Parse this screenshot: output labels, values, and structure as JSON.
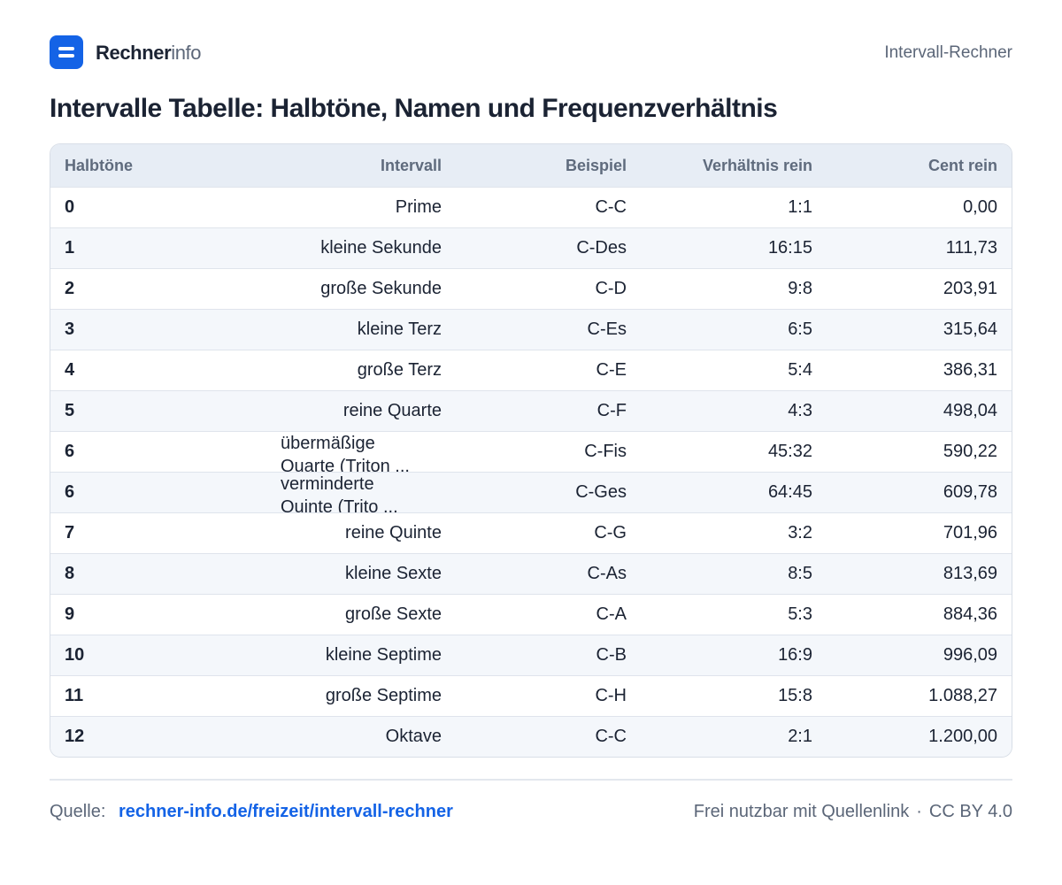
{
  "brand": {
    "bold": "Rechner",
    "light": "info"
  },
  "header": {
    "tool_name": "Intervall-Rechner"
  },
  "page": {
    "title": "Intervalle Tabelle: Halbtöne, Namen und Frequenzverhältnis"
  },
  "table": {
    "columns": [
      "Halbtöne",
      "Intervall",
      "Beispiel",
      "Verhältnis rein",
      "Cent rein"
    ],
    "rows": [
      [
        "0",
        "Prime",
        "C-C",
        "1:1",
        "0,00"
      ],
      [
        "1",
        "kleine Sekunde",
        "C-Des",
        "16:15",
        "111,73"
      ],
      [
        "2",
        "große Sekunde",
        "C-D",
        "9:8",
        "203,91"
      ],
      [
        "3",
        "kleine Terz",
        "C-Es",
        "6:5",
        "315,64"
      ],
      [
        "4",
        "große Terz",
        "C-E",
        "5:4",
        "386,31"
      ],
      [
        "5",
        "reine Quarte",
        "C-F",
        "4:3",
        "498,04"
      ],
      [
        "6",
        "übermäßige Quarte (Triton ...",
        "C-Fis",
        "45:32",
        "590,22"
      ],
      [
        "6",
        "verminderte Quinte (Trito ...",
        "C-Ges",
        "64:45",
        "609,78"
      ],
      [
        "7",
        "reine Quinte",
        "C-G",
        "3:2",
        "701,96"
      ],
      [
        "8",
        "kleine Sexte",
        "C-As",
        "8:5",
        "813,69"
      ],
      [
        "9",
        "große Sexte",
        "C-A",
        "5:3",
        "884,36"
      ],
      [
        "10",
        "kleine Septime",
        "C-B",
        "16:9",
        "996,09"
      ],
      [
        "11",
        "große Septime",
        "C-H",
        "15:8",
        "1.088,27"
      ],
      [
        "12",
        "Oktave",
        "C-C",
        "2:1",
        "1.200,00"
      ]
    ]
  },
  "footer": {
    "source_label": "Quelle:",
    "source_link": "rechner-info.de/freizeit/intervall-rechner",
    "license_text": "Frei nutzbar mit Quellenlink",
    "separator": "·",
    "license": "CC BY 4.0"
  },
  "colors": {
    "accent": "#1463e6",
    "header_bg": "#e7edf5",
    "alt_row": "#f4f7fb"
  }
}
